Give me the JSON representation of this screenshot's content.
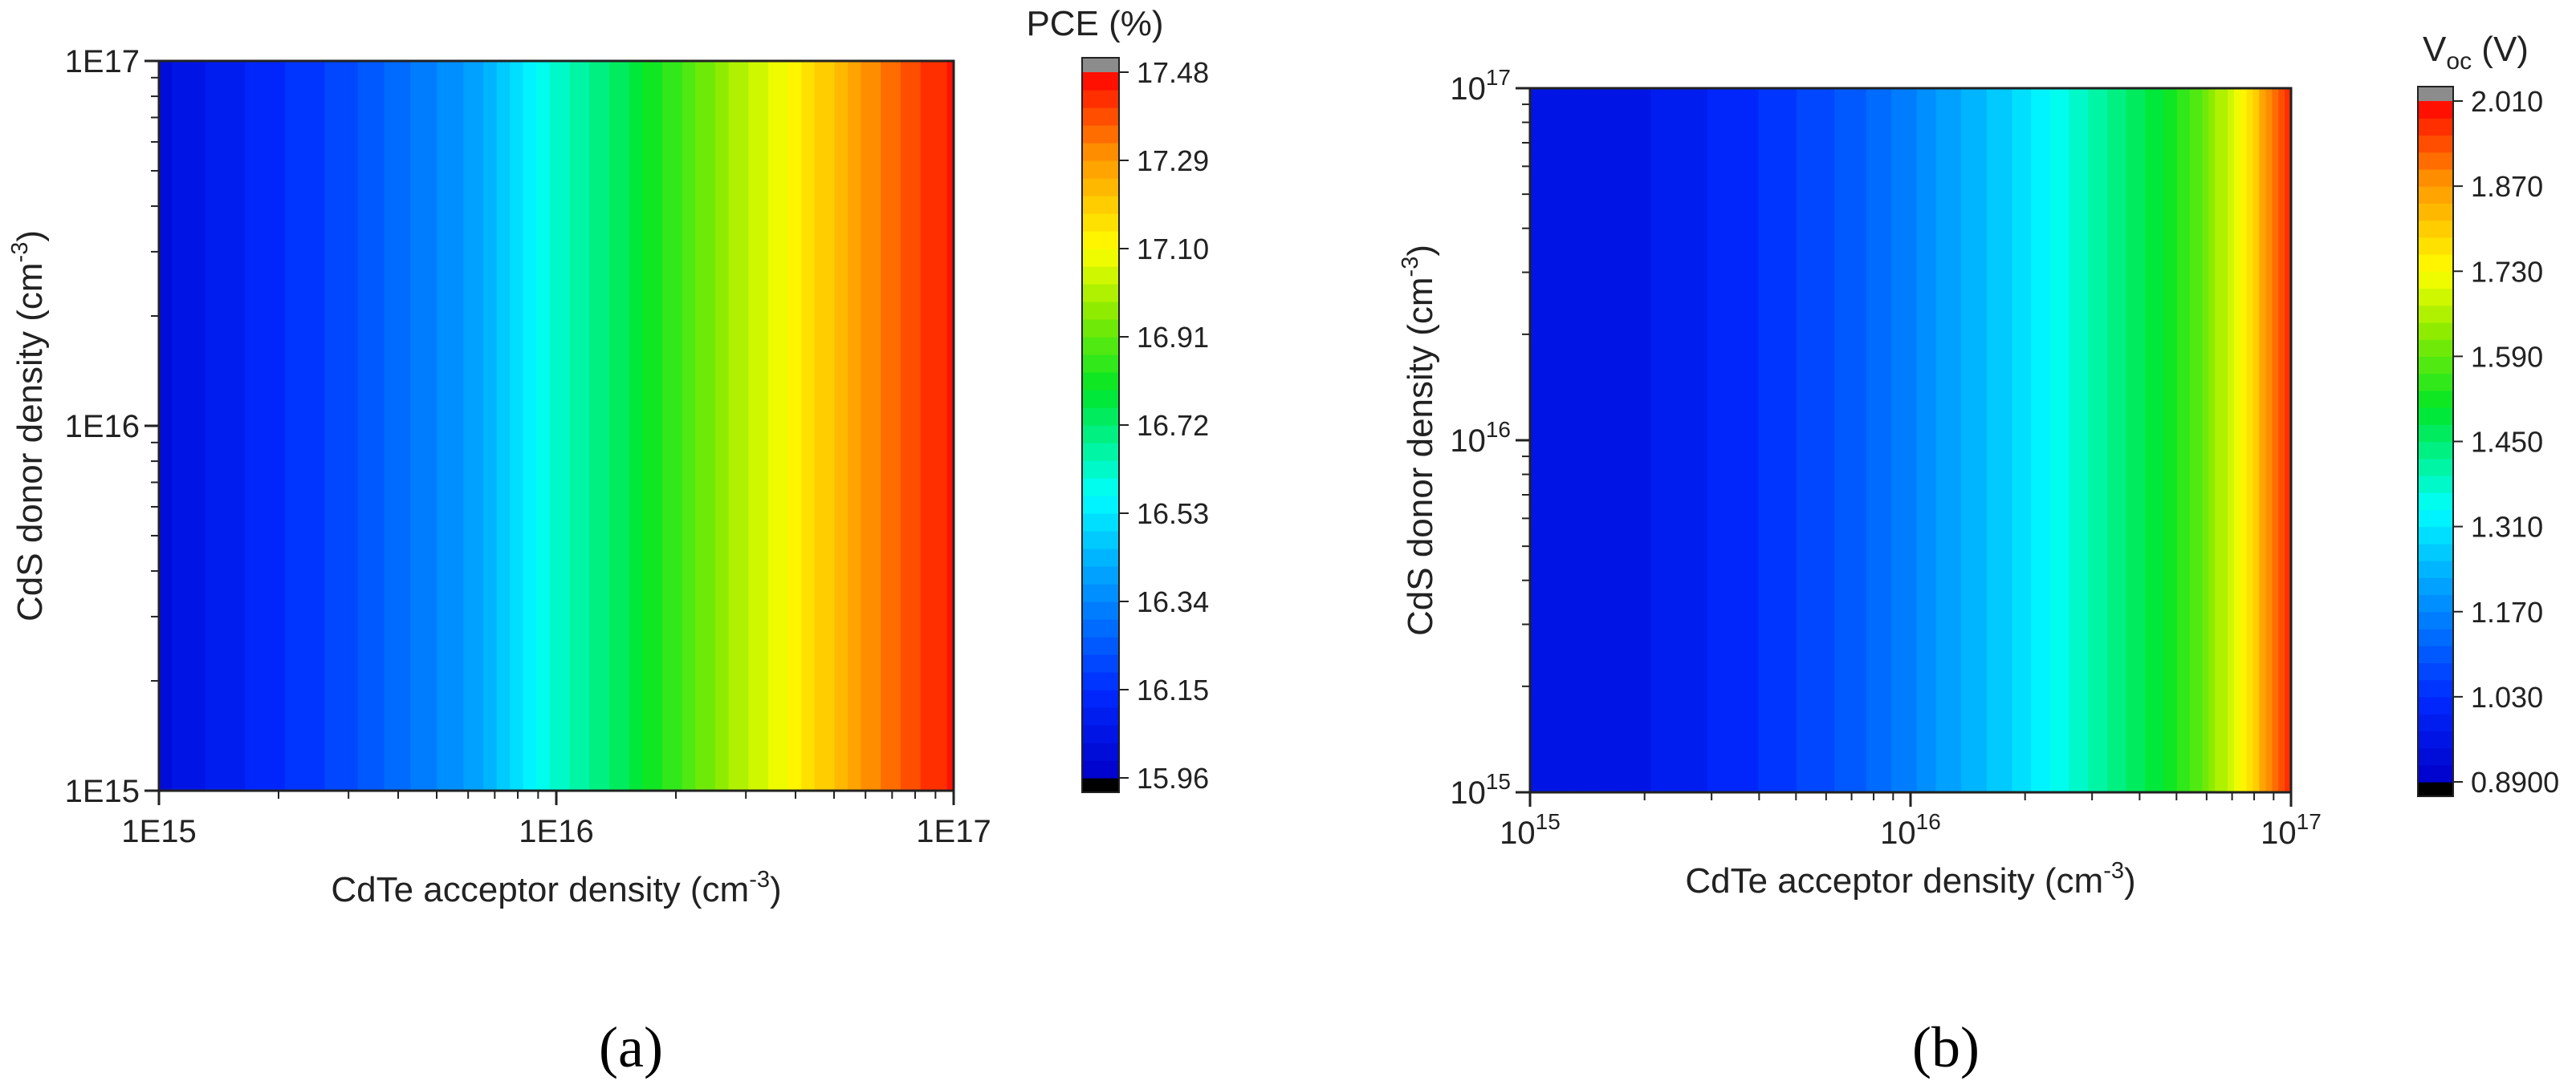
{
  "chart_data": [
    {
      "panel": "(a)",
      "type": "heatmap",
      "xlabel": "CdTe acceptor density (cm",
      "xlabel_exp": "-3",
      "xlabel_close": ")",
      "ylabel": "CdS donor density (cm",
      "ylabel_exp": "-3",
      "ylabel_close": ")",
      "xscale": "log",
      "yscale": "log",
      "xlim": [
        1000000000000000.0,
        1e+17
      ],
      "ylim": [
        1000000000000000.0,
        1e+17
      ],
      "x_ticks": [
        {
          "value": 1000000000000000.0,
          "label": "1E15"
        },
        {
          "value": 1e+16,
          "label": "1E16"
        },
        {
          "value": 1e+17,
          "label": "1E17"
        }
      ],
      "y_ticks": [
        {
          "value": 1000000000000000.0,
          "label": "1E15"
        },
        {
          "value": 1e+16,
          "label": "1E16"
        },
        {
          "value": 1e+17,
          "label": "1E17"
        }
      ],
      "colorbar": {
        "title": "PCE (%)",
        "min": 15.96,
        "max": 17.48,
        "ticks": [
          "17.48",
          "17.29",
          "17.10",
          "16.91",
          "16.72",
          "16.53",
          "16.34",
          "16.15",
          "15.96"
        ],
        "levels": 40
      },
      "value_along_x": [
        {
          "x": 1000000000000000.0,
          "z": 16.02
        },
        {
          "x": 1500000000000000.0,
          "z": 16.1
        },
        {
          "x": 2500000000000000.0,
          "z": 16.18
        },
        {
          "x": 4000000000000000.0,
          "z": 16.28
        },
        {
          "x": 6000000000000000.0,
          "z": 16.38
        },
        {
          "x": 1e+16,
          "z": 16.62
        },
        {
          "x": 1.6e+16,
          "z": 16.78
        },
        {
          "x": 2.5e+16,
          "z": 16.95
        },
        {
          "x": 4e+16,
          "z": 17.12
        },
        {
          "x": 6e+16,
          "z": 17.3
        },
        {
          "x": 1e+17,
          "z": 17.46
        }
      ]
    },
    {
      "panel": "(b)",
      "type": "heatmap",
      "xlabel": "CdTe acceptor density (cm",
      "xlabel_exp": "-3",
      "xlabel_close": ")",
      "ylabel": "CdS donor density (cm",
      "ylabel_exp": "-3",
      "ylabel_close": ")",
      "xscale": "log",
      "yscale": "log",
      "xlim": [
        1000000000000000.0,
        1e+17
      ],
      "ylim": [
        1000000000000000.0,
        1e+17
      ],
      "x_ticks": [
        {
          "value": 1000000000000000.0,
          "base": "10",
          "exp": "15"
        },
        {
          "value": 1e+16,
          "base": "10",
          "exp": "16"
        },
        {
          "value": 1e+17,
          "base": "10",
          "exp": "17"
        }
      ],
      "y_ticks": [
        {
          "value": 1000000000000000.0,
          "base": "10",
          "exp": "15"
        },
        {
          "value": 1e+16,
          "base": "10",
          "exp": "16"
        },
        {
          "value": 1e+17,
          "base": "10",
          "exp": "17"
        }
      ],
      "colorbar": {
        "title": "V",
        "title_sub": "oc",
        "title_unit": " (V)",
        "min": 0.89,
        "max": 2.01,
        "ticks": [
          "2.010",
          "1.870",
          "1.730",
          "1.590",
          "1.450",
          "1.310",
          "1.170",
          "1.030",
          "0.8900"
        ],
        "levels": 40
      },
      "value_along_x": [
        {
          "x": 1000000000000000.0,
          "z": 0.95
        },
        {
          "x": 2000000000000000.0,
          "z": 0.97
        },
        {
          "x": 4000000000000000.0,
          "z": 1.03
        },
        {
          "x": 7000000000000000.0,
          "z": 1.1
        },
        {
          "x": 1.2e+16,
          "z": 1.2
        },
        {
          "x": 2e+16,
          "z": 1.3
        },
        {
          "x": 3e+16,
          "z": 1.4
        },
        {
          "x": 4.5e+16,
          "z": 1.5
        },
        {
          "x": 6e+16,
          "z": 1.6
        },
        {
          "x": 7.5e+16,
          "z": 1.75
        },
        {
          "x": 9e+16,
          "z": 1.9
        },
        {
          "x": 1e+17,
          "z": 2.0
        }
      ]
    }
  ],
  "captions": [
    "(a)",
    "(b)"
  ]
}
